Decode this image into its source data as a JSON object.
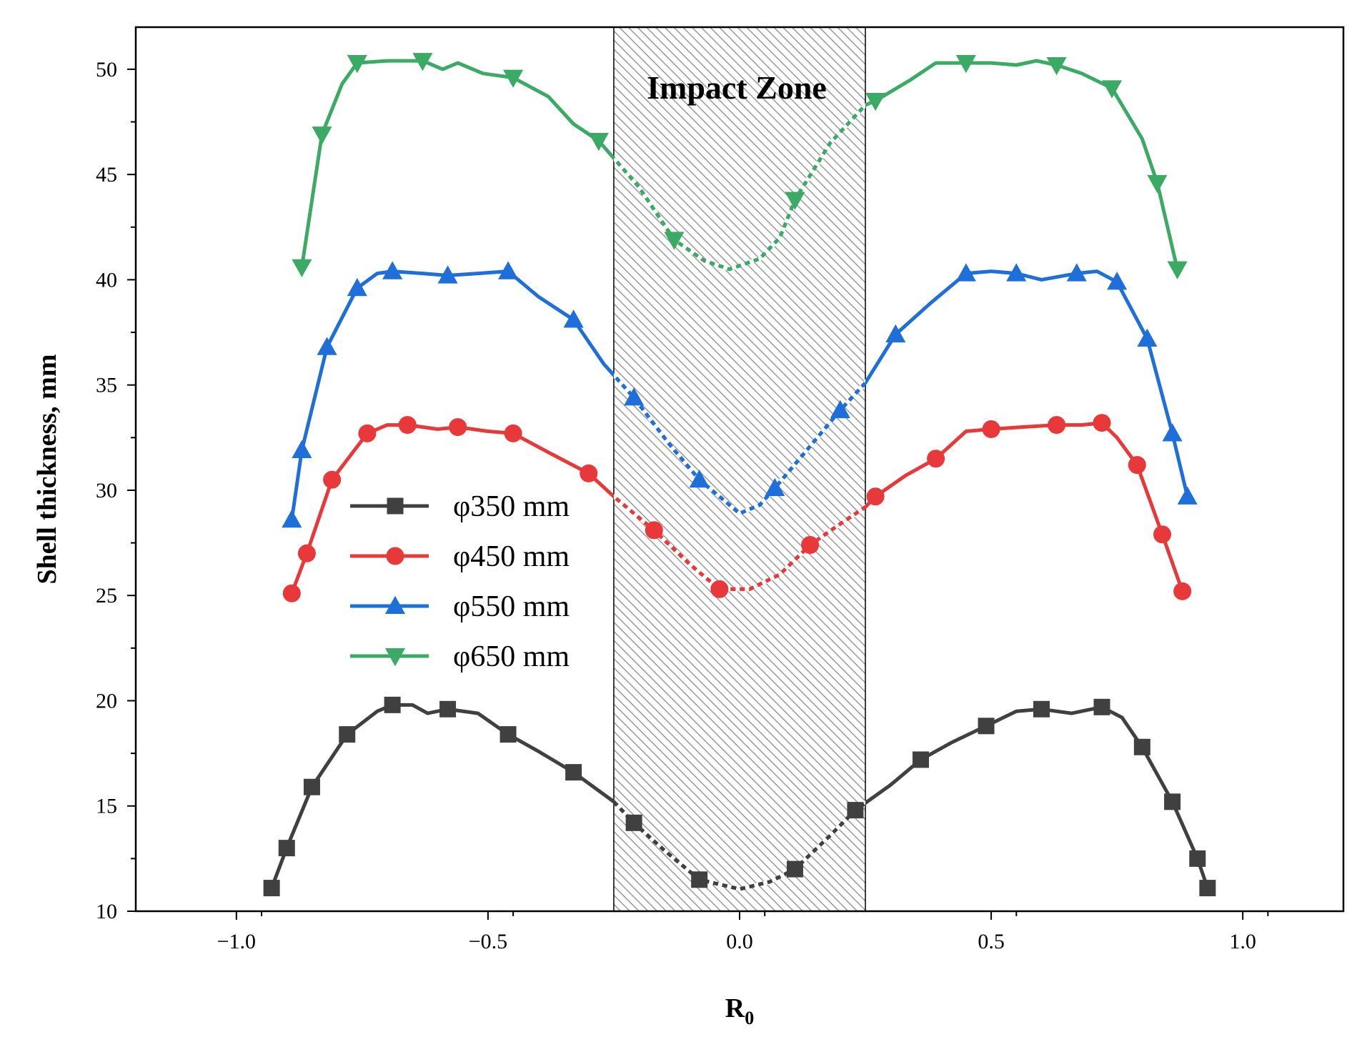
{
  "chart_data": {
    "type": "line",
    "title": "",
    "xlabel": "R",
    "xlabel_subscript": "0",
    "ylabel": "Shell thickness, mm",
    "xlim": [
      -1.2,
      1.2
    ],
    "ylim": [
      10,
      52
    ],
    "x_ticks": [
      -1.0,
      -0.5,
      0.0,
      0.5,
      1.0
    ],
    "x_tick_labels": [
      "−1.0",
      "−0.5",
      "0.0",
      "0.5",
      "1.0"
    ],
    "y_ticks": [
      10,
      15,
      20,
      25,
      30,
      35,
      40,
      45,
      50
    ],
    "y_tick_labels": [
      "10",
      "15",
      "20",
      "25",
      "30",
      "35",
      "40",
      "45",
      "50"
    ],
    "grid": false,
    "legend_position": "center-left",
    "annotation": {
      "text": "Impact Zone",
      "x_range": [
        -0.25,
        0.25
      ],
      "y_range": [
        10,
        52
      ]
    },
    "series": [
      {
        "name": "φ350 mm",
        "color": "#404040",
        "marker": "square",
        "markers": [
          [
            -0.93,
            11.1
          ],
          [
            -0.9,
            13
          ],
          [
            -0.85,
            15.9
          ],
          [
            -0.78,
            18.4
          ],
          [
            -0.69,
            19.8
          ],
          [
            -0.58,
            19.6
          ],
          [
            -0.46,
            18.4
          ],
          [
            -0.33,
            16.6
          ],
          [
            -0.21,
            14.2
          ],
          [
            -0.08,
            11.5
          ],
          [
            0.11,
            12
          ],
          [
            0.23,
            14.8
          ],
          [
            0.36,
            17.2
          ],
          [
            0.49,
            18.8
          ],
          [
            0.6,
            19.6
          ],
          [
            0.72,
            19.7
          ],
          [
            0.8,
            17.8
          ],
          [
            0.86,
            15.2
          ],
          [
            0.91,
            12.5
          ],
          [
            0.93,
            11.1
          ]
        ],
        "curve": [
          [
            -0.93,
            11.1
          ],
          [
            -0.9,
            13
          ],
          [
            -0.85,
            15.9
          ],
          [
            -0.78,
            18.4
          ],
          [
            -0.72,
            19.5
          ],
          [
            -0.69,
            19.8
          ],
          [
            -0.65,
            19.8
          ],
          [
            -0.62,
            19.4
          ],
          [
            -0.58,
            19.6
          ],
          [
            -0.52,
            19.4
          ],
          [
            -0.46,
            18.4
          ],
          [
            -0.4,
            17.6
          ],
          [
            -0.33,
            16.6
          ],
          [
            -0.25,
            15.2
          ],
          [
            -0.21,
            14.2
          ],
          [
            -0.15,
            12.9
          ],
          [
            -0.08,
            11.5
          ],
          [
            0,
            11.05
          ],
          [
            0.06,
            11.4
          ],
          [
            0.11,
            12
          ],
          [
            0.18,
            13.6
          ],
          [
            0.23,
            14.8
          ],
          [
            0.3,
            16
          ],
          [
            0.36,
            17.2
          ],
          [
            0.42,
            18
          ],
          [
            0.49,
            18.8
          ],
          [
            0.55,
            19.5
          ],
          [
            0.6,
            19.6
          ],
          [
            0.66,
            19.4
          ],
          [
            0.72,
            19.7
          ],
          [
            0.76,
            19.2
          ],
          [
            0.8,
            17.8
          ],
          [
            0.86,
            15.2
          ],
          [
            0.91,
            12.5
          ],
          [
            0.93,
            11.1
          ]
        ]
      },
      {
        "name": "φ450 mm",
        "color": "#e8393a",
        "marker": "circle",
        "markers": [
          [
            -0.89,
            25.1
          ],
          [
            -0.86,
            27
          ],
          [
            -0.81,
            30.5
          ],
          [
            -0.74,
            32.7
          ],
          [
            -0.66,
            33.1
          ],
          [
            -0.56,
            33
          ],
          [
            -0.45,
            32.7
          ],
          [
            -0.3,
            30.8
          ],
          [
            -0.17,
            28.1
          ],
          [
            -0.04,
            25.3
          ],
          [
            0.14,
            27.4
          ],
          [
            0.27,
            29.7
          ],
          [
            0.39,
            31.5
          ],
          [
            0.5,
            32.9
          ],
          [
            0.63,
            33.1
          ],
          [
            0.72,
            33.2
          ],
          [
            0.79,
            31.2
          ],
          [
            0.84,
            27.9
          ],
          [
            0.88,
            25.2
          ]
        ],
        "curve": [
          [
            -0.89,
            25.1
          ],
          [
            -0.86,
            27
          ],
          [
            -0.81,
            30.5
          ],
          [
            -0.74,
            32.7
          ],
          [
            -0.7,
            33.1
          ],
          [
            -0.66,
            33.1
          ],
          [
            -0.6,
            32.9
          ],
          [
            -0.56,
            33
          ],
          [
            -0.5,
            32.8
          ],
          [
            -0.45,
            32.7
          ],
          [
            -0.38,
            31.8
          ],
          [
            -0.3,
            30.8
          ],
          [
            -0.25,
            29.7
          ],
          [
            -0.17,
            28.1
          ],
          [
            -0.1,
            26.5
          ],
          [
            -0.04,
            25.3
          ],
          [
            0.02,
            25.3
          ],
          [
            0.08,
            26
          ],
          [
            0.14,
            27.4
          ],
          [
            0.2,
            28.4
          ],
          [
            0.25,
            29.2
          ],
          [
            0.27,
            29.7
          ],
          [
            0.33,
            30.7
          ],
          [
            0.39,
            31.5
          ],
          [
            0.45,
            32.8
          ],
          [
            0.5,
            32.9
          ],
          [
            0.56,
            33
          ],
          [
            0.63,
            33.1
          ],
          [
            0.68,
            33.1
          ],
          [
            0.72,
            33.2
          ],
          [
            0.75,
            32.5
          ],
          [
            0.79,
            31.2
          ],
          [
            0.84,
            27.9
          ],
          [
            0.88,
            25.2
          ]
        ]
      },
      {
        "name": "φ550 mm",
        "color": "#1e6fd9",
        "marker": "triangle-up",
        "markers": [
          [
            -0.89,
            28.6
          ],
          [
            -0.87,
            31.9
          ],
          [
            -0.82,
            36.8
          ],
          [
            -0.76,
            39.6
          ],
          [
            -0.69,
            40.4
          ],
          [
            -0.58,
            40.2
          ],
          [
            -0.46,
            40.4
          ],
          [
            -0.33,
            38.1
          ],
          [
            -0.21,
            34.4
          ],
          [
            -0.08,
            30.5
          ],
          [
            0.07,
            30.1
          ],
          [
            0.2,
            33.8
          ],
          [
            0.31,
            37.4
          ],
          [
            0.45,
            40.3
          ],
          [
            0.55,
            40.3
          ],
          [
            0.67,
            40.3
          ],
          [
            0.75,
            39.9
          ],
          [
            0.81,
            37.2
          ],
          [
            0.86,
            32.7
          ],
          [
            0.89,
            29.7
          ]
        ],
        "curve": [
          [
            -0.89,
            28.6
          ],
          [
            -0.87,
            31.9
          ],
          [
            -0.82,
            36.8
          ],
          [
            -0.76,
            39.6
          ],
          [
            -0.72,
            40.3
          ],
          [
            -0.69,
            40.4
          ],
          [
            -0.63,
            40.3
          ],
          [
            -0.58,
            40.2
          ],
          [
            -0.52,
            40.3
          ],
          [
            -0.46,
            40.4
          ],
          [
            -0.4,
            39.2
          ],
          [
            -0.33,
            38.1
          ],
          [
            -0.27,
            36
          ],
          [
            -0.21,
            34.4
          ],
          [
            -0.14,
            32.2
          ],
          [
            -0.08,
            30.5
          ],
          [
            0,
            28.9
          ],
          [
            0.04,
            29.3
          ],
          [
            0.07,
            30.1
          ],
          [
            0.13,
            31.8
          ],
          [
            0.2,
            33.8
          ],
          [
            0.25,
            35.1
          ],
          [
            0.31,
            37.4
          ],
          [
            0.38,
            38.9
          ],
          [
            0.45,
            40.3
          ],
          [
            0.5,
            40.4
          ],
          [
            0.55,
            40.3
          ],
          [
            0.6,
            40
          ],
          [
            0.67,
            40.3
          ],
          [
            0.71,
            40.4
          ],
          [
            0.75,
            39.9
          ],
          [
            0.81,
            37.2
          ],
          [
            0.86,
            32.7
          ],
          [
            0.89,
            29.7
          ]
        ]
      },
      {
        "name": "φ650 mm",
        "color": "#3aaa64",
        "marker": "triangle-down",
        "markers": [
          [
            -0.87,
            40.6
          ],
          [
            -0.83,
            46.9
          ],
          [
            -0.76,
            50.3
          ],
          [
            -0.63,
            50.4
          ],
          [
            -0.45,
            49.6
          ],
          [
            -0.28,
            46.6
          ],
          [
            -0.13,
            41.9
          ],
          [
            0.11,
            43.8
          ],
          [
            0.27,
            48.5
          ],
          [
            0.45,
            50.3
          ],
          [
            0.63,
            50.2
          ],
          [
            0.74,
            49.1
          ],
          [
            0.83,
            44.6
          ],
          [
            0.87,
            40.5
          ]
        ],
        "curve": [
          [
            -0.87,
            40.6
          ],
          [
            -0.83,
            46.9
          ],
          [
            -0.79,
            49.3
          ],
          [
            -0.76,
            50.3
          ],
          [
            -0.7,
            50.4
          ],
          [
            -0.66,
            50.4
          ],
          [
            -0.63,
            50.4
          ],
          [
            -0.59,
            50
          ],
          [
            -0.56,
            50.3
          ],
          [
            -0.51,
            49.8
          ],
          [
            -0.45,
            49.6
          ],
          [
            -0.38,
            48.7
          ],
          [
            -0.33,
            47.4
          ],
          [
            -0.28,
            46.6
          ],
          [
            -0.2,
            44.4
          ],
          [
            -0.13,
            41.9
          ],
          [
            -0.07,
            40.9
          ],
          [
            -0.02,
            40.5
          ],
          [
            0.04,
            41
          ],
          [
            0.08,
            42
          ],
          [
            0.11,
            43.8
          ],
          [
            0.18,
            46.5
          ],
          [
            0.25,
            48.3
          ],
          [
            0.27,
            48.5
          ],
          [
            0.34,
            49.5
          ],
          [
            0.39,
            50.3
          ],
          [
            0.45,
            50.3
          ],
          [
            0.5,
            50.3
          ],
          [
            0.55,
            50.2
          ],
          [
            0.59,
            50.4
          ],
          [
            0.63,
            50.2
          ],
          [
            0.68,
            49.8
          ],
          [
            0.74,
            49.1
          ],
          [
            0.8,
            46.7
          ],
          [
            0.83,
            44.6
          ],
          [
            0.87,
            40.5
          ]
        ]
      }
    ]
  }
}
